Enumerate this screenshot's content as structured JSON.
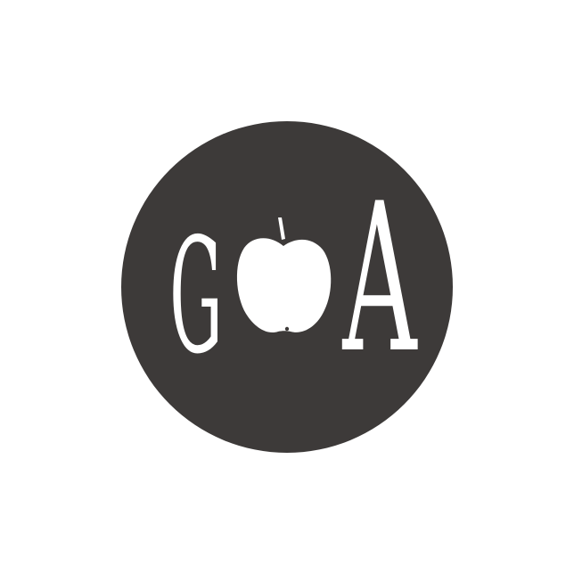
{
  "logo": {
    "letter_left": "G",
    "letter_right": "A",
    "disc_color": "#3d3a39",
    "mark_color": "#ffffff",
    "icon": "apple-icon"
  }
}
